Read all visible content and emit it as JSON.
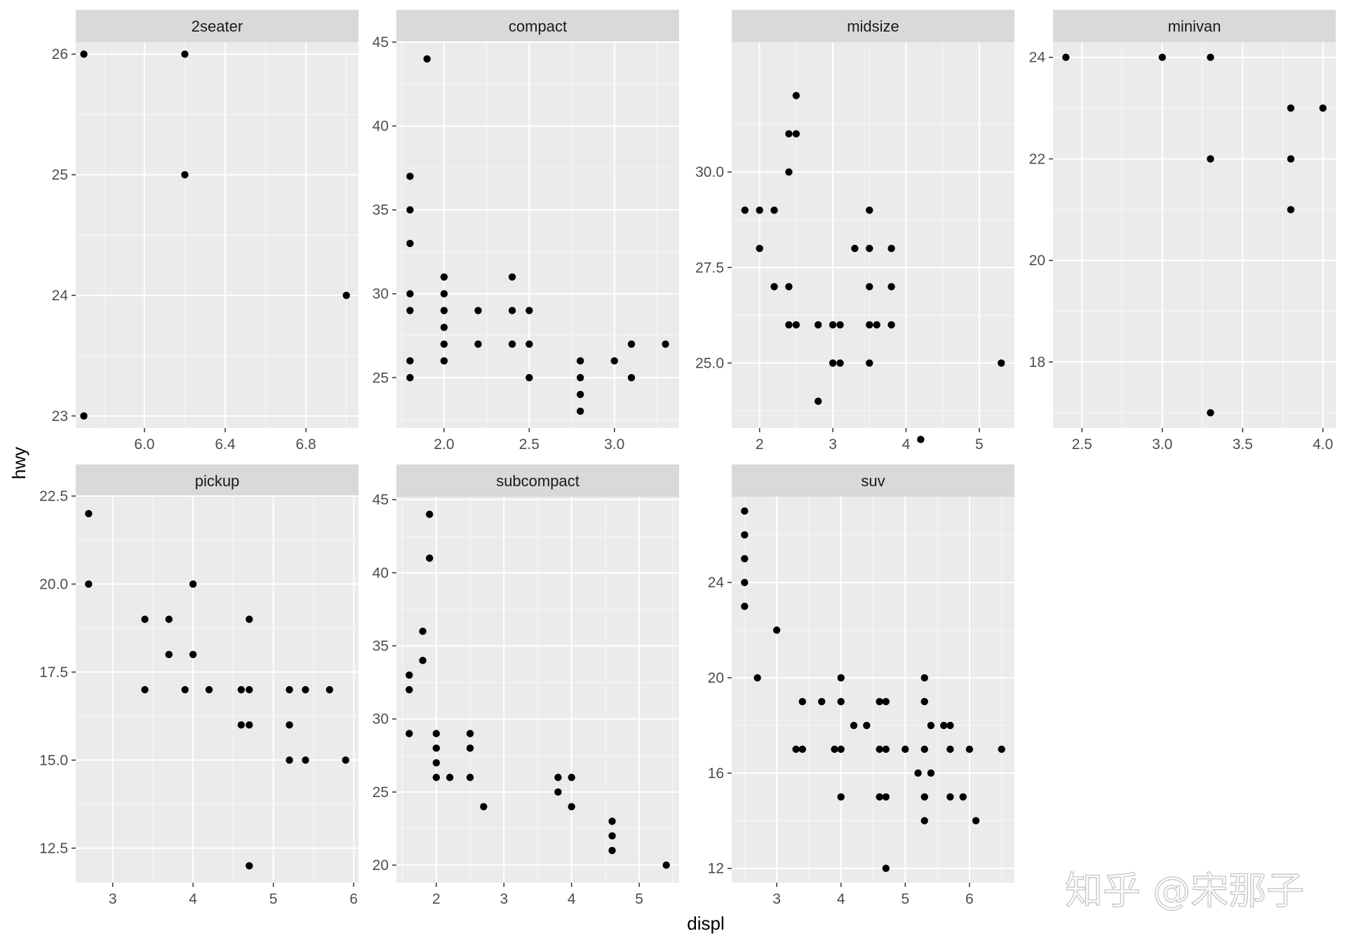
{
  "chart_data": {
    "type": "scatter",
    "facet_by": "class",
    "xlabel": "displ",
    "ylabel": "hwy",
    "grid": true,
    "point_color": "#000000",
    "panel_background": "#ebebeb",
    "strip_background": "#d9d9d9",
    "panels": [
      {
        "name": "2seater",
        "xlim": [
          5.66,
          7.06
        ],
        "ylim": [
          22.9,
          26.1
        ],
        "xticks": [
          6.0,
          6.4,
          6.8
        ],
        "xtick_labels": [
          "6.0",
          "6.4",
          "6.8"
        ],
        "yticks": [
          23,
          24,
          25,
          26
        ],
        "ytick_labels": [
          "23",
          "24",
          "25",
          "26"
        ],
        "x": [
          5.7,
          5.7,
          6.2,
          6.2,
          7.0
        ],
        "y": [
          26,
          23,
          26,
          25,
          24
        ]
      },
      {
        "name": "compact",
        "xlim": [
          1.72,
          3.38
        ],
        "ylim": [
          22.0,
          45.0
        ],
        "xticks": [
          2.0,
          2.5,
          3.0
        ],
        "xtick_labels": [
          "2.0",
          "2.5",
          "3.0"
        ],
        "yticks": [
          25,
          30,
          35,
          40,
          45
        ],
        "ytick_labels": [
          "25",
          "30",
          "35",
          "40",
          "45"
        ],
        "x": [
          1.8,
          1.8,
          1.8,
          1.8,
          1.8,
          1.8,
          1.8,
          1.9,
          2.0,
          2.0,
          2.0,
          2.0,
          2.0,
          2.0,
          2.2,
          2.2,
          2.4,
          2.4,
          2.4,
          2.5,
          2.5,
          2.5,
          2.8,
          2.8,
          2.8,
          2.8,
          3.0,
          3.1,
          3.1,
          3.3
        ],
        "y": [
          37,
          35,
          33,
          30,
          29,
          26,
          25,
          44,
          31,
          30,
          29,
          28,
          27,
          26,
          29,
          27,
          31,
          29,
          27,
          29,
          27,
          25,
          26,
          25,
          24,
          23,
          26,
          27,
          25,
          27
        ]
      },
      {
        "name": "midsize",
        "xlim": [
          1.62,
          5.48
        ],
        "ylim": [
          23.3,
          33.4
        ],
        "xticks": [
          2,
          3,
          4,
          5
        ],
        "xtick_labels": [
          "2",
          "3",
          "4",
          "5"
        ],
        "yticks": [
          25.0,
          27.5,
          30.0
        ],
        "ytick_labels": [
          "25.0",
          "27.5",
          "30.0"
        ],
        "x": [
          1.8,
          2.0,
          2.0,
          2.2,
          2.2,
          2.4,
          2.4,
          2.4,
          2.4,
          2.5,
          2.5,
          2.5,
          2.8,
          2.8,
          3.0,
          3.0,
          3.1,
          3.1,
          3.3,
          3.5,
          3.5,
          3.5,
          3.5,
          3.5,
          3.6,
          3.8,
          3.8,
          3.8,
          4.2,
          5.3
        ],
        "y": [
          29,
          29,
          28,
          29,
          27,
          31,
          30,
          27,
          26,
          32,
          31,
          26,
          26,
          24,
          26,
          25,
          26,
          25,
          28,
          29,
          28,
          27,
          26,
          25,
          26,
          28,
          27,
          26,
          23,
          25
        ]
      },
      {
        "name": "minivan",
        "xlim": [
          2.32,
          4.08
        ],
        "ylim": [
          16.7,
          24.3
        ],
        "xticks": [
          2.5,
          3.0,
          3.5,
          4.0
        ],
        "xtick_labels": [
          "2.5",
          "3.0",
          "3.5",
          "4.0"
        ],
        "yticks": [
          18,
          20,
          22,
          24
        ],
        "ytick_labels": [
          "18",
          "20",
          "22",
          "24"
        ],
        "x": [
          2.4,
          3.0,
          3.3,
          3.3,
          3.3,
          3.8,
          3.8,
          3.8,
          4.0
        ],
        "y": [
          24,
          24,
          24,
          22,
          17,
          23,
          22,
          21,
          23
        ]
      },
      {
        "name": "pickup",
        "xlim": [
          2.54,
          6.06
        ],
        "ylim": [
          11.52,
          22.48
        ],
        "xticks": [
          3,
          4,
          5,
          6
        ],
        "xtick_labels": [
          "3",
          "4",
          "5",
          "6"
        ],
        "yticks": [
          12.5,
          15.0,
          17.5,
          20.0,
          22.5
        ],
        "ytick_labels": [
          "12.5",
          "15.0",
          "17.5",
          "20.0",
          "22.5"
        ],
        "x": [
          2.7,
          2.7,
          3.4,
          3.4,
          3.7,
          3.7,
          3.9,
          4.0,
          4.0,
          4.2,
          4.6,
          4.6,
          4.7,
          4.7,
          4.7,
          4.7,
          5.2,
          5.2,
          5.2,
          5.4,
          5.4,
          5.7,
          5.9
        ],
        "y": [
          22,
          20,
          19,
          17,
          19,
          18,
          17,
          20,
          18,
          17,
          17,
          16,
          19,
          17,
          16,
          12,
          17,
          16,
          15,
          17,
          15,
          17,
          15
        ]
      },
      {
        "name": "subcompact",
        "xlim": [
          1.41,
          5.59
        ],
        "ylim": [
          18.8,
          45.2
        ],
        "xticks": [
          2,
          3,
          4,
          5
        ],
        "xtick_labels": [
          "2",
          "3",
          "4",
          "5"
        ],
        "yticks": [
          20,
          25,
          30,
          35,
          40,
          45
        ],
        "ytick_labels": [
          "20",
          "25",
          "30",
          "35",
          "40",
          "45"
        ],
        "x": [
          1.6,
          1.6,
          1.6,
          1.8,
          1.8,
          1.9,
          1.9,
          2.0,
          2.0,
          2.0,
          2.0,
          2.2,
          2.5,
          2.5,
          2.5,
          2.7,
          3.8,
          3.8,
          4.0,
          4.0,
          4.6,
          4.6,
          4.6,
          5.4
        ],
        "y": [
          33,
          32,
          29,
          36,
          34,
          44,
          41,
          29,
          28,
          27,
          26,
          26,
          29,
          28,
          26,
          24,
          26,
          25,
          26,
          24,
          23,
          22,
          21,
          20
        ]
      },
      {
        "name": "suv",
        "xlim": [
          2.3,
          6.7
        ],
        "ylim": [
          11.4,
          27.6
        ],
        "xticks": [
          3,
          4,
          5,
          6
        ],
        "xtick_labels": [
          "3",
          "4",
          "5",
          "6"
        ],
        "yticks": [
          12,
          16,
          20,
          24
        ],
        "ytick_labels": [
          "12",
          "16",
          "20",
          "24"
        ],
        "x": [
          2.5,
          2.5,
          2.5,
          2.5,
          2.5,
          2.7,
          3.0,
          3.3,
          3.4,
          3.4,
          3.7,
          3.9,
          4.0,
          4.0,
          4.0,
          4.0,
          4.2,
          4.4,
          4.6,
          4.6,
          4.6,
          4.7,
          4.7,
          4.7,
          4.7,
          5.0,
          5.2,
          5.3,
          5.3,
          5.3,
          5.3,
          5.3,
          5.4,
          5.4,
          5.6,
          5.7,
          5.7,
          5.7,
          5.9,
          6.0,
          6.1,
          6.5
        ],
        "y": [
          27,
          26,
          25,
          24,
          23,
          20,
          22,
          17,
          19,
          17,
          19,
          17,
          20,
          19,
          17,
          15,
          18,
          18,
          19,
          17,
          15,
          19,
          17,
          15,
          12,
          17,
          16,
          20,
          19,
          17,
          15,
          14,
          18,
          16,
          18,
          18,
          17,
          15,
          15,
          17,
          14,
          17
        ]
      }
    ]
  },
  "watermark": {
    "text": "知乎 @宋那子"
  }
}
